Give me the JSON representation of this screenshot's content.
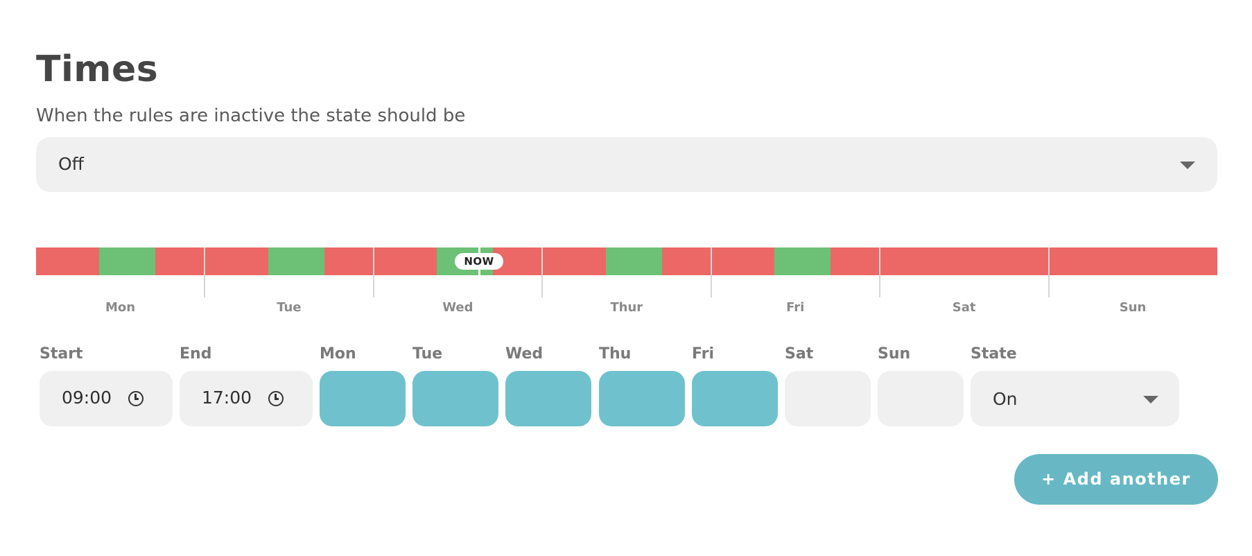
{
  "header": {
    "title": "Times",
    "subtitle": "When the rules are inactive the state should be"
  },
  "inactive_state": {
    "selected": "Off",
    "caret_icon": "caret-down-icon"
  },
  "timeline": {
    "days": [
      "Mon",
      "Tue",
      "Wed",
      "Thur",
      "Fri",
      "Sat",
      "Sun"
    ],
    "now_label": "NOW",
    "now": {
      "day": "Wed",
      "hour": 15.0
    },
    "states": {
      "Mon": [
        {
          "state": "off",
          "from": 0,
          "to": 9
        },
        {
          "state": "on",
          "from": 9,
          "to": 17
        },
        {
          "state": "off",
          "from": 17,
          "to": 24
        }
      ],
      "Tue": [
        {
          "state": "off",
          "from": 0,
          "to": 9
        },
        {
          "state": "on",
          "from": 9,
          "to": 17
        },
        {
          "state": "off",
          "from": 17,
          "to": 24
        }
      ],
      "Wed": [
        {
          "state": "off",
          "from": 0,
          "to": 9
        },
        {
          "state": "on",
          "from": 9,
          "to": 17
        },
        {
          "state": "off",
          "from": 17,
          "to": 24
        }
      ],
      "Thur": [
        {
          "state": "off",
          "from": 0,
          "to": 9
        },
        {
          "state": "on",
          "from": 9,
          "to": 17
        },
        {
          "state": "off",
          "from": 17,
          "to": 24
        }
      ],
      "Fri": [
        {
          "state": "off",
          "from": 0,
          "to": 9
        },
        {
          "state": "on",
          "from": 9,
          "to": 17
        },
        {
          "state": "off",
          "from": 17,
          "to": 24
        }
      ],
      "Sat": [
        {
          "state": "off",
          "from": 0,
          "to": 24
        }
      ],
      "Sun": [
        {
          "state": "off",
          "from": 0,
          "to": 24
        }
      ]
    },
    "colors": {
      "on": "#6cc177",
      "off": "#ec6866"
    }
  },
  "rule": {
    "labels": {
      "start": "Start",
      "end": "End",
      "mon": "Mon",
      "tue": "Tue",
      "wed": "Wed",
      "thu": "Thu",
      "fri": "Fri",
      "sat": "Sat",
      "sun": "Sun",
      "state": "State"
    },
    "start_time": "09:00",
    "end_time": "17:00",
    "time_icon": "clock-icon",
    "days_active": {
      "mon": true,
      "tue": true,
      "wed": true,
      "thu": true,
      "fri": true,
      "sat": false,
      "sun": false
    },
    "state_selected": "On",
    "active_color": "#6fc2cd"
  },
  "actions": {
    "add_another_label": "+ Add another"
  }
}
